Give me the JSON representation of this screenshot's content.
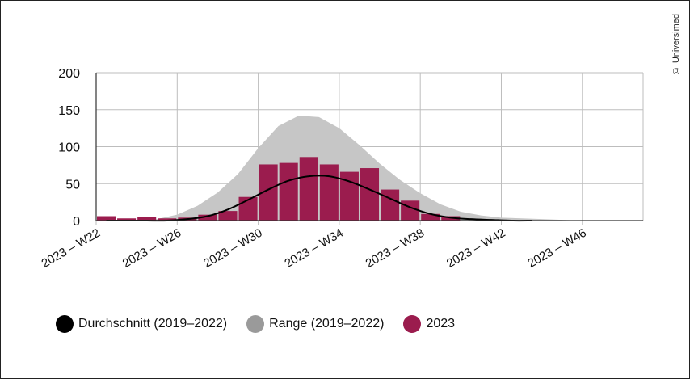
{
  "credit": "© Universimed",
  "colors": {
    "average": "#000000",
    "range": "#c6c6c6",
    "range_legend": "#9a9a9a",
    "current": "#9b1c4e",
    "grid": "#bdbdbd",
    "axis": "#333333"
  },
  "legend": [
    {
      "label": "Durchschnitt (2019–2022)",
      "color": "#000000"
    },
    {
      "label": "Range (2019–2022)",
      "color": "#9a9a9a"
    },
    {
      "label": "2023",
      "color": "#9b1c4e"
    }
  ],
  "chart_data": {
    "type": "bar",
    "title": "",
    "xlabel": "",
    "ylabel": "",
    "ylim": [
      0,
      200
    ],
    "yticks": [
      0,
      50,
      100,
      150,
      200
    ],
    "xlim": [
      22,
      49
    ],
    "x_tick_labels": [
      {
        "week": 22,
        "label": "2023 – W22"
      },
      {
        "week": 26,
        "label": "2023 – W26"
      },
      {
        "week": 30,
        "label": "2023 – W30"
      },
      {
        "week": 34,
        "label": "2023 – W34"
      },
      {
        "week": 38,
        "label": "2023 – W38"
      },
      {
        "week": 42,
        "label": "2023 – W42"
      },
      {
        "week": 46,
        "label": "2023 – W46"
      }
    ],
    "grid": true,
    "legend_position": "bottom",
    "series": [
      {
        "name": "2023",
        "type": "bar",
        "weeks": [
          22,
          23,
          24,
          25,
          26,
          27,
          28,
          29,
          30,
          31,
          32,
          33,
          34,
          35,
          36,
          37,
          38,
          39
        ],
        "values": [
          6,
          3,
          5,
          3,
          4,
          8,
          13,
          32,
          76,
          78,
          86,
          76,
          66,
          71,
          42,
          27,
          9,
          6
        ]
      },
      {
        "name": "Durchschnitt (2019–2022)",
        "type": "line",
        "weeks": [
          22,
          23,
          24,
          25,
          26,
          27,
          28,
          29,
          30,
          31,
          32,
          33,
          34,
          35,
          36,
          37,
          38,
          39,
          40,
          41,
          42,
          43
        ],
        "values": [
          0,
          0,
          0,
          0,
          2,
          6,
          15,
          28,
          42,
          54,
          60,
          60,
          53,
          42,
          30,
          18,
          9,
          4,
          2,
          1,
          0,
          0
        ]
      },
      {
        "name": "Range (2019–2022)",
        "type": "area",
        "weeks": [
          22,
          23,
          24,
          25,
          26,
          27,
          28,
          29,
          30,
          31,
          32,
          33,
          34,
          35,
          36,
          37,
          38,
          39,
          40,
          41,
          42,
          43,
          44,
          45,
          46,
          47,
          48
        ],
        "lower": [
          0,
          0,
          0,
          0,
          0,
          0,
          0,
          0,
          0,
          0,
          0,
          0,
          0,
          0,
          0,
          0,
          0,
          0,
          0,
          0,
          0,
          0,
          0,
          0,
          0,
          0,
          0
        ],
        "upper": [
          0,
          0,
          0,
          2,
          8,
          20,
          38,
          63,
          98,
          128,
          142,
          140,
          125,
          102,
          77,
          55,
          37,
          22,
          12,
          7,
          4,
          3,
          2,
          1,
          0,
          0,
          0
        ]
      }
    ]
  }
}
